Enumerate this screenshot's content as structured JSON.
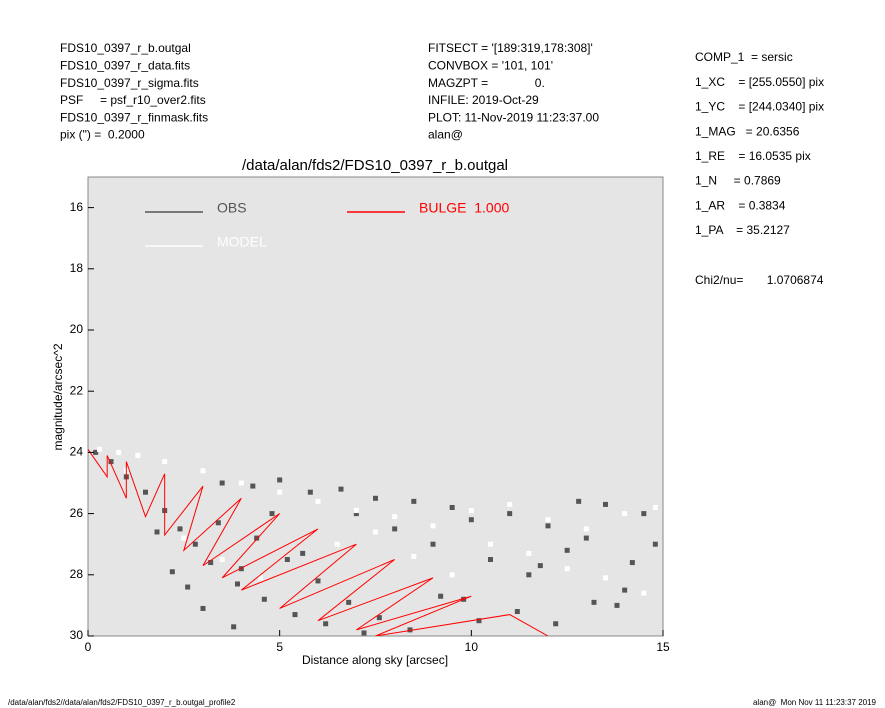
{
  "header": {
    "left": [
      "FDS10_0397_r_b.outgal",
      "FDS10_0397_r_data.fits",
      "FDS10_0397_r_sigma.fits",
      "PSF     = psf_r10_over2.fits",
      "FDS10_0397_r_finmask.fits",
      "pix (\") =  0.2000"
    ],
    "middle": [
      "FITSECT = '[189:319,178:308]'",
      "CONVBOX = '101, 101'",
      "MAGZPT =              0.",
      "INFILE: 2019-Oct-29",
      "PLOT: 11-Nov-2019 11:23:37.00",
      "alan@"
    ],
    "right": [
      "COMP_1  = sersic",
      "1_XC    = [255.0550] pix",
      "1_YC    = [244.0340] pix",
      "1_MAG   = 20.6356",
      "1_RE    = 16.0535 pix",
      "1_N     = 0.7869",
      "1_AR    = 0.3834",
      "1_PA    = 35.2127"
    ],
    "chi2": "Chi2/nu=       1.0706874"
  },
  "footer": {
    "left": "/data/alan/fds2//data/alan/fds2/FDS10_0397_r_b.outgal_profile2",
    "right": "alan@  Mon Nov 11 11:23:37 2019"
  },
  "chart_data": {
    "type": "scatter",
    "title": "/data/alan/fds2/FDS10_0397_r_b.outgal",
    "x_label": "Distance along sky [arcsec]",
    "y_label": "magnitude/arcsec^2",
    "xlim": [
      0,
      15
    ],
    "xticks": [
      0,
      5,
      10,
      15
    ],
    "ylim": [
      30,
      15
    ],
    "yticks": [
      16,
      18,
      20,
      22,
      24,
      26,
      28,
      30
    ],
    "background": "#e5e5e5",
    "series": [
      {
        "name": "OBS",
        "color": "#555555",
        "x": [
          0.2,
          0.6,
          1.0,
          1.5,
          2.0,
          2.4,
          2.8,
          3.2,
          3.5,
          3.9,
          4.3,
          4.6,
          5.0,
          5.4,
          5.8,
          6.2,
          6.6,
          7.0,
          7.5,
          8.0,
          8.5,
          9.0,
          9.5,
          10.0,
          10.5,
          11.0,
          11.5,
          12.0,
          12.5,
          13.0,
          13.5,
          14.0,
          14.5,
          2.6,
          3.0,
          3.8,
          4.4,
          5.2,
          6.0,
          6.8,
          7.6,
          8.4,
          9.2,
          10.2,
          11.2,
          12.2,
          13.2,
          14.2,
          4.8,
          5.6,
          1.8,
          2.2,
          3.4,
          4.0,
          12.8,
          13.8,
          14.8,
          9.8,
          11.8,
          7.2
        ],
        "values": [
          24.0,
          24.3,
          24.8,
          25.3,
          25.9,
          26.5,
          27.0,
          27.6,
          25.0,
          28.3,
          25.1,
          28.8,
          24.9,
          29.3,
          25.3,
          29.6,
          25.2,
          26.0,
          25.5,
          26.5,
          25.6,
          27.0,
          25.8,
          26.2,
          27.5,
          26.0,
          28.0,
          26.4,
          27.2,
          26.8,
          25.7,
          28.5,
          26.0,
          28.4,
          29.1,
          29.7,
          26.8,
          27.5,
          28.2,
          28.9,
          29.4,
          29.8,
          28.7,
          29.5,
          29.2,
          29.6,
          28.9,
          27.6,
          26.0,
          27.3,
          26.6,
          27.9,
          26.3,
          27.8,
          25.6,
          29.0,
          27.0,
          28.8,
          27.7,
          29.9
        ]
      },
      {
        "name": "MODEL",
        "color": "#ffffff",
        "x": [
          0.3,
          0.8,
          1.3,
          2.0,
          3.0,
          4.0,
          5.0,
          6.0,
          7.0,
          8.0,
          9.0,
          10.0,
          11.0,
          12.0,
          13.0,
          14.0,
          14.8,
          10.5,
          11.5,
          12.5,
          13.5,
          14.5,
          8.5,
          9.5,
          6.5,
          7.5,
          1.0,
          2.5,
          3.5,
          4.5
        ],
        "values": [
          23.9,
          24.0,
          24.1,
          24.3,
          24.6,
          25.0,
          25.3,
          25.6,
          25.9,
          26.1,
          26.4,
          25.9,
          25.7,
          26.2,
          26.5,
          26.0,
          25.8,
          27.0,
          27.3,
          27.8,
          28.1,
          28.6,
          27.4,
          28.0,
          27.0,
          26.6,
          24.6,
          26.8,
          27.5,
          28.1
        ]
      },
      {
        "name": "BULGE  1.000",
        "color": "#ff0000",
        "mode": "line",
        "x": [
          0,
          0.5,
          0.5,
          1,
          1,
          1.5,
          2,
          2,
          3,
          2.5,
          4,
          3,
          5,
          3.5,
          6,
          4,
          7,
          5,
          8,
          6,
          9,
          7,
          10,
          7.5,
          11,
          12
        ],
        "values": [
          23.9,
          24.8,
          24.1,
          25.5,
          24.3,
          26.1,
          24.7,
          26.7,
          25.1,
          27.2,
          25.5,
          27.7,
          26.0,
          28.1,
          26.5,
          28.5,
          27.0,
          29.1,
          27.5,
          29.5,
          28.1,
          29.8,
          28.7,
          30,
          29.3,
          30
        ]
      }
    ]
  }
}
